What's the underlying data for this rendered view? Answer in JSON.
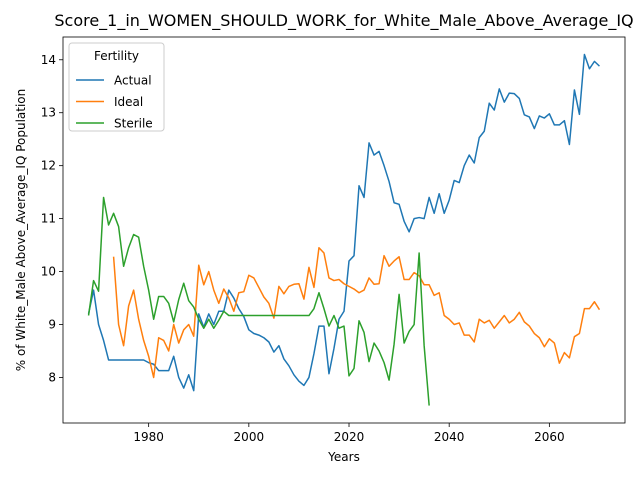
{
  "chart_data": {
    "type": "line",
    "title": "Score_1_in_WOMEN_SHOULD_WORK_for_White_Male_Above_Average_IQ",
    "x_label": "Years",
    "y_label": "% of White_Male Above_Average_IQ Population",
    "x": [
      1968,
      1969,
      1970,
      1971,
      1972,
      1973,
      1974,
      1975,
      1976,
      1977,
      1978,
      1979,
      1980,
      1981,
      1982,
      1983,
      1984,
      1985,
      1986,
      1987,
      1988,
      1989,
      1990,
      1991,
      1992,
      1993,
      1994,
      1995,
      1996,
      1997,
      1998,
      1999,
      2000,
      2001,
      2002,
      2003,
      2004,
      2005,
      2006,
      2007,
      2008,
      2009,
      2010,
      2011,
      2012,
      2013,
      2014,
      2015,
      2016,
      2017,
      2018,
      2019,
      2020,
      2021,
      2022,
      2023,
      2024,
      2025,
      2026,
      2027,
      2028,
      2029,
      2030,
      2031,
      2032,
      2033,
      2034,
      2035,
      2036,
      2037,
      2038,
      2039,
      2040,
      2041,
      2042,
      2043,
      2044,
      2045,
      2046,
      2047,
      2048,
      2049,
      2050,
      2051,
      2052,
      2053,
      2054,
      2055,
      2056,
      2057,
      2058,
      2059,
      2060,
      2061,
      2062,
      2063,
      2064,
      2065,
      2066,
      2067,
      2068,
      2069,
      2070
    ],
    "series": [
      {
        "name": "Actual",
        "color": "#1f77b4",
        "values": [
          9.2,
          9.65,
          9.0,
          8.7,
          8.33,
          8.33,
          8.33,
          8.33,
          8.33,
          8.33,
          8.33,
          8.33,
          8.28,
          8.25,
          8.13,
          8.13,
          8.13,
          8.4,
          8.0,
          7.8,
          8.05,
          7.75,
          9.2,
          8.95,
          9.2,
          9.0,
          9.25,
          9.25,
          9.65,
          9.5,
          9.3,
          9.15,
          8.9,
          8.83,
          8.8,
          8.75,
          8.67,
          8.48,
          8.6,
          8.35,
          8.22,
          8.05,
          7.93,
          7.85,
          8.0,
          8.45,
          8.97,
          8.97,
          8.07,
          8.55,
          9.1,
          9.25,
          10.2,
          10.3,
          11.62,
          11.4,
          12.43,
          12.2,
          12.27,
          12.0,
          11.7,
          11.3,
          11.27,
          10.95,
          10.75,
          11.0,
          11.02,
          11.0,
          11.4,
          11.1,
          11.47,
          11.1,
          11.35,
          11.72,
          11.68,
          12.0,
          12.2,
          12.05,
          12.53,
          12.65,
          13.18,
          13.05,
          13.45,
          13.2,
          13.37,
          13.36,
          13.27,
          12.96,
          12.92,
          12.7,
          12.94,
          12.9,
          12.98,
          12.77,
          12.77,
          12.85,
          12.4,
          13.43,
          12.97,
          14.1,
          13.83,
          13.97,
          13.88
        ]
      },
      {
        "name": "Ideal",
        "color": "#ff7f0e",
        "values": [
          null,
          null,
          null,
          null,
          null,
          10.28,
          9.0,
          8.6,
          9.35,
          9.65,
          9.1,
          8.7,
          8.4,
          8.0,
          8.75,
          8.7,
          8.5,
          9.0,
          8.65,
          8.9,
          9.0,
          8.78,
          10.12,
          9.75,
          10.0,
          9.65,
          9.4,
          9.67,
          9.5,
          9.25,
          9.6,
          9.62,
          9.93,
          9.88,
          9.7,
          9.52,
          9.4,
          9.12,
          9.72,
          9.58,
          9.72,
          9.76,
          9.77,
          9.48,
          10.08,
          9.7,
          10.45,
          10.35,
          9.88,
          9.83,
          9.85,
          9.77,
          9.72,
          9.67,
          9.6,
          9.65,
          9.88,
          9.76,
          9.77,
          10.3,
          10.1,
          10.2,
          10.28,
          9.85,
          9.85,
          9.98,
          9.92,
          9.75,
          9.75,
          9.55,
          9.6,
          9.17,
          9.1,
          9.0,
          9.03,
          8.8,
          8.8,
          8.67,
          9.1,
          9.03,
          9.08,
          8.93,
          9.05,
          9.17,
          9.03,
          9.1,
          9.23,
          9.05,
          8.97,
          8.83,
          8.75,
          8.58,
          8.73,
          8.65,
          8.27,
          8.47,
          8.37,
          8.77,
          8.83,
          9.3,
          9.3,
          9.43,
          9.28
        ]
      },
      {
        "name": "Sterile",
        "color": "#2ca02c",
        "values": [
          9.17,
          9.83,
          9.63,
          11.4,
          10.88,
          11.1,
          10.85,
          10.1,
          10.45,
          10.7,
          10.65,
          10.1,
          9.65,
          9.1,
          9.53,
          9.53,
          9.4,
          9.05,
          9.47,
          9.78,
          9.45,
          9.33,
          9.1,
          8.93,
          9.1,
          8.93,
          9.08,
          9.25,
          9.17,
          9.17,
          9.17,
          9.17,
          9.17,
          9.17,
          9.17,
          9.17,
          9.17,
          9.17,
          9.17,
          9.17,
          9.17,
          9.17,
          9.17,
          9.17,
          9.17,
          9.3,
          9.6,
          9.3,
          8.97,
          9.17,
          8.93,
          8.97,
          8.03,
          8.17,
          9.07,
          8.85,
          8.3,
          8.65,
          8.5,
          8.28,
          7.95,
          8.63,
          9.57,
          8.65,
          8.87,
          9.0,
          10.35,
          8.6,
          7.47,
          null,
          null,
          null,
          null,
          null,
          null,
          null,
          null,
          null,
          null,
          null,
          null,
          null,
          null,
          null,
          null,
          null,
          null,
          null,
          null,
          null,
          null,
          null,
          null,
          null,
          null,
          null,
          null,
          null,
          null,
          null,
          null,
          null,
          null
        ]
      }
    ],
    "xlim": [
      1962.9,
      2075.1
    ],
    "ylim": [
      7.14,
      14.43
    ],
    "xticks": [
      1980,
      2000,
      2020,
      2040,
      2060
    ],
    "yticks": [
      8,
      9,
      10,
      11,
      12,
      13,
      14
    ],
    "grid": false,
    "legend": {
      "title": "Fertility",
      "position": "upper left"
    }
  }
}
